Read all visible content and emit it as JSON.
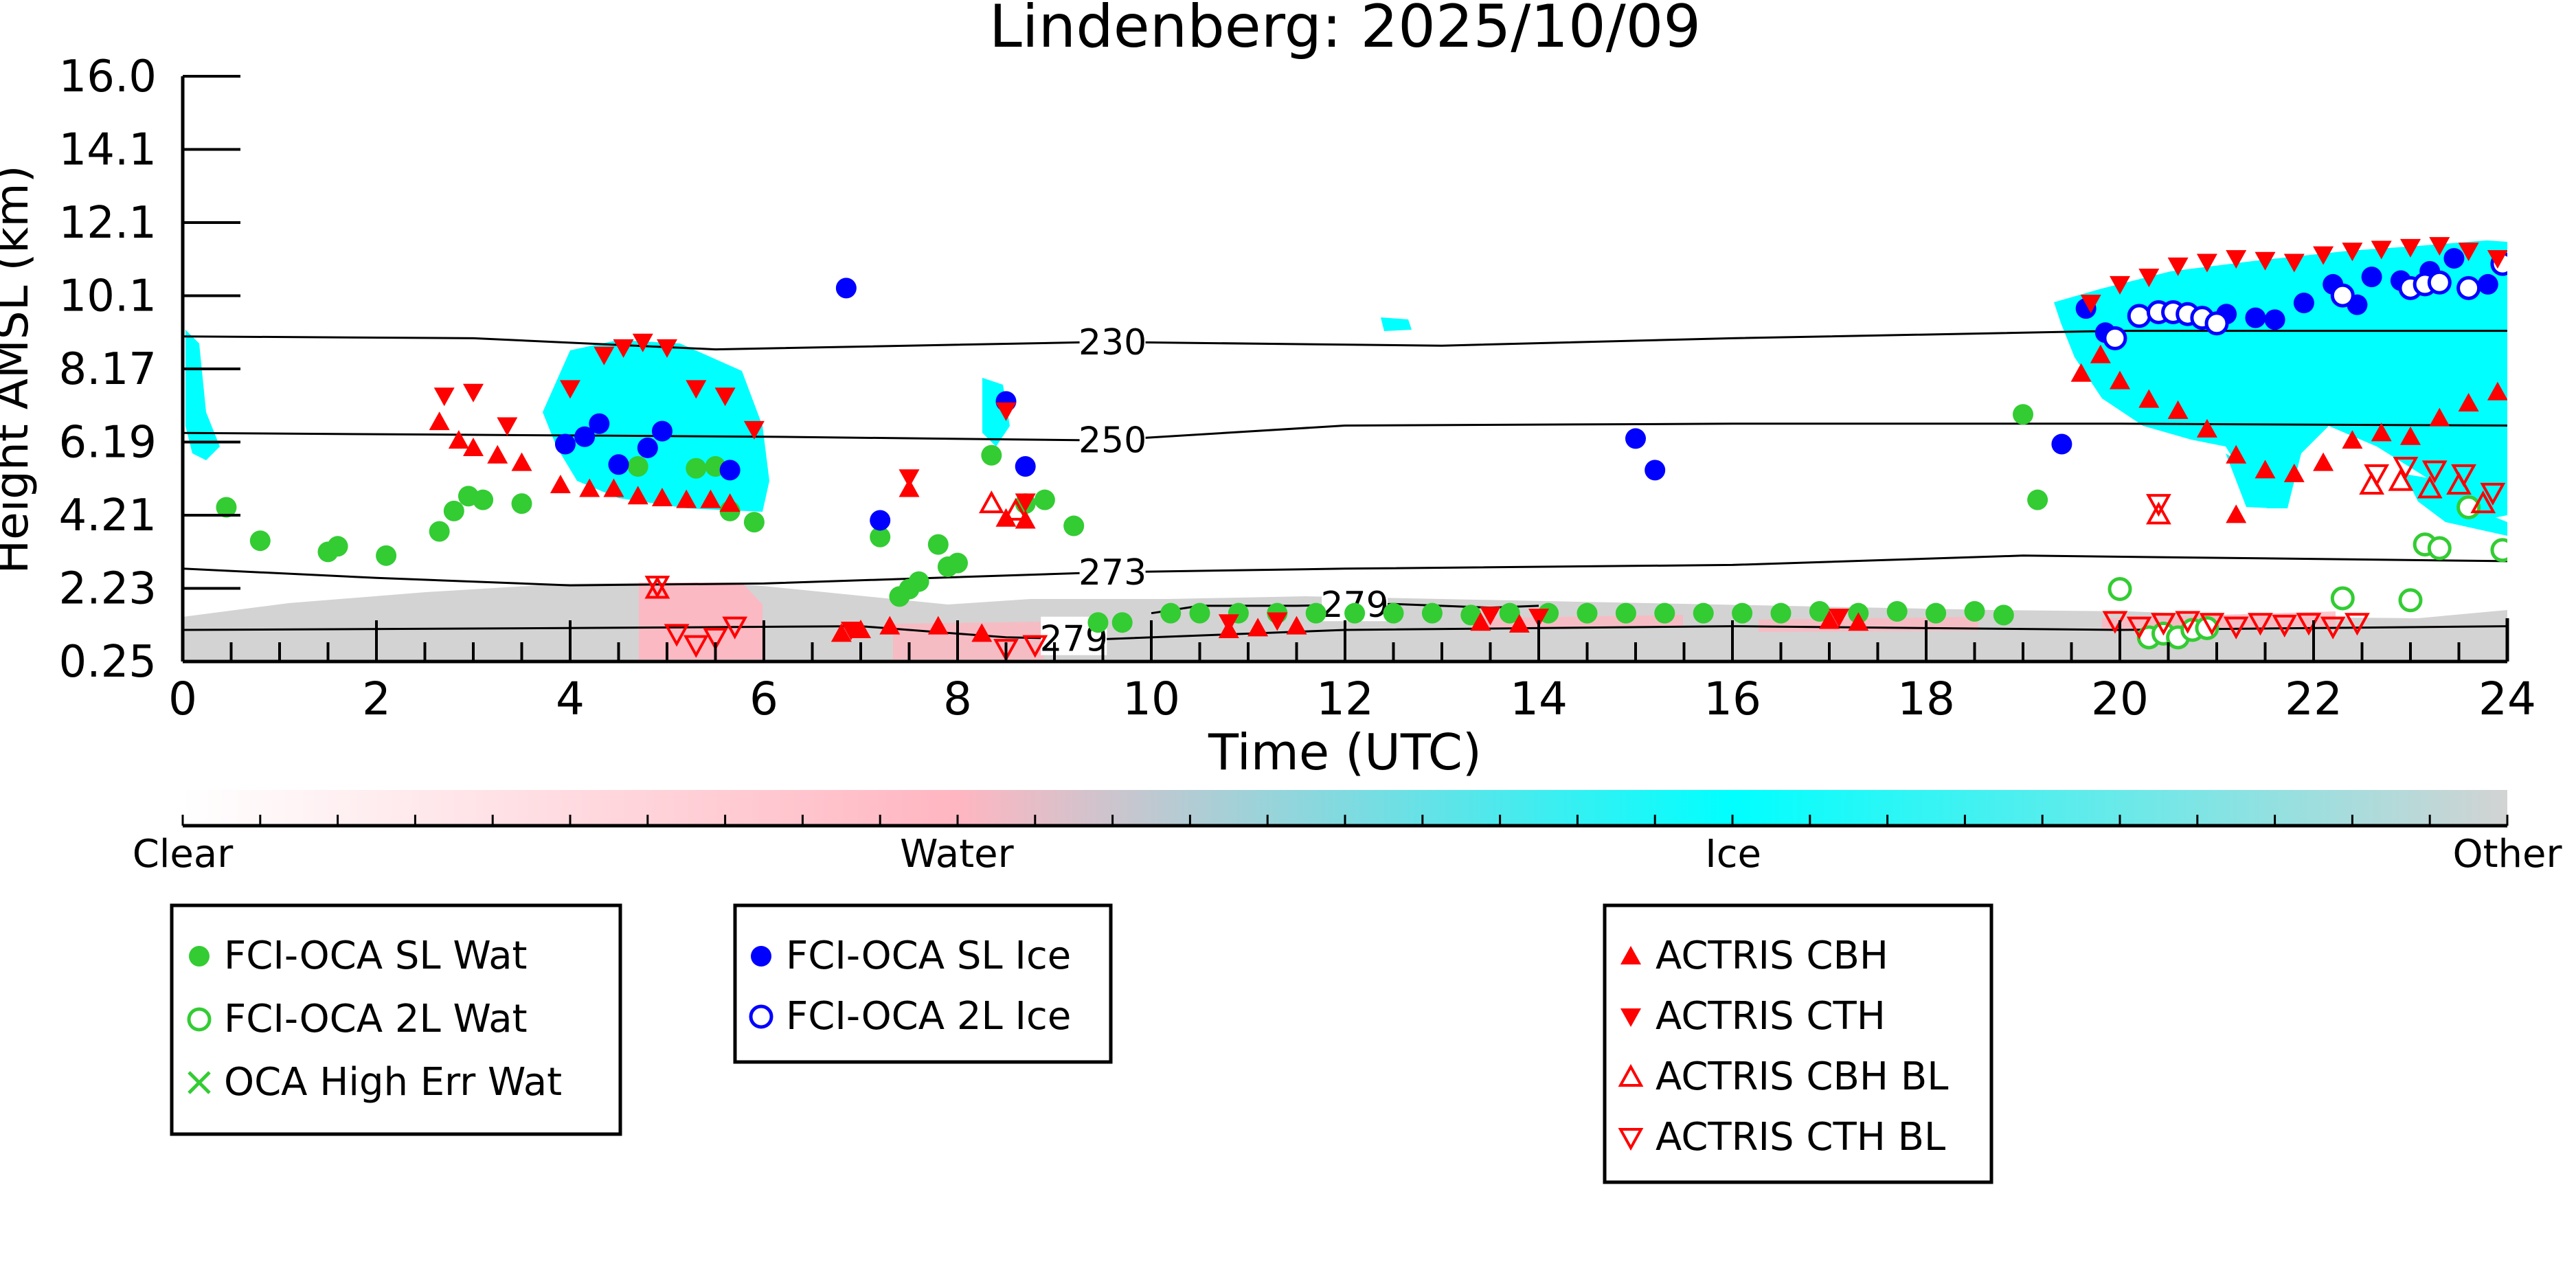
{
  "chart_data": {
    "type": "scatter",
    "title": "Lindenberg: 2025/10/09",
    "xlabel": "Time (UTC)",
    "ylabel": "Height AMSL (km)",
    "xlim": [
      0,
      24
    ],
    "ylim": [
      0.25,
      16.0
    ],
    "x_ticks": [
      0,
      2,
      4,
      6,
      8,
      10,
      12,
      14,
      16,
      18,
      20,
      22,
      24
    ],
    "y_ticks": [
      "0.25",
      "2.23",
      "4.21",
      "6.19",
      "8.17",
      "10.1",
      "12.1",
      "14.1",
      "16.0"
    ],
    "colorbar": {
      "labels": [
        {
          "text": "Clear",
          "pos": 0.0
        },
        {
          "text": "Water",
          "pos": 0.333
        },
        {
          "text": "Ice",
          "pos": 0.667
        },
        {
          "text": "Other",
          "pos": 1.0
        }
      ],
      "colors": [
        "#ffffff",
        "#ffb6c1",
        "#00ffff",
        "#d3d3d3"
      ]
    },
    "isotherms": [
      {
        "label": "230",
        "label_x": 9.6,
        "points": [
          [
            0,
            9.0
          ],
          [
            3,
            8.95
          ],
          [
            5.5,
            8.65
          ],
          [
            9.5,
            8.85
          ],
          [
            13,
            8.75
          ],
          [
            16,
            8.95
          ],
          [
            20,
            9.15
          ],
          [
            24,
            9.15
          ]
        ]
      },
      {
        "label": "250",
        "label_x": 9.6,
        "points": [
          [
            0,
            6.4
          ],
          [
            3,
            6.35
          ],
          [
            6,
            6.3
          ],
          [
            9.5,
            6.2
          ],
          [
            12,
            6.6
          ],
          [
            16,
            6.65
          ],
          [
            20,
            6.65
          ],
          [
            24,
            6.6
          ]
        ]
      },
      {
        "label": "273",
        "label_x": 9.6,
        "points": [
          [
            0,
            2.75
          ],
          [
            2,
            2.5
          ],
          [
            4,
            2.3
          ],
          [
            6,
            2.35
          ],
          [
            9.5,
            2.65
          ],
          [
            12,
            2.75
          ],
          [
            16,
            2.85
          ],
          [
            19,
            3.1
          ],
          [
            24,
            2.95
          ]
        ]
      },
      {
        "label": "279",
        "label_x": 12.1,
        "points": [
          [
            10,
            1.55
          ],
          [
            10.5,
            1.75
          ],
          [
            11.5,
            1.75
          ],
          [
            12.5,
            1.8
          ],
          [
            13.5,
            1.7
          ],
          [
            14,
            1.75
          ]
        ]
      },
      {
        "label": "279",
        "label_x": 9.2,
        "points": [
          [
            0,
            1.1
          ],
          [
            4,
            1.15
          ],
          [
            7,
            1.2
          ],
          [
            8.5,
            0.9
          ],
          [
            9.5,
            0.85
          ],
          [
            12,
            1.1
          ],
          [
            16,
            1.2
          ],
          [
            20,
            1.1
          ],
          [
            24,
            1.2
          ]
        ]
      }
    ],
    "series": [
      {
        "name": "FCI-OCA SL Wat",
        "marker": "filled-circle",
        "color": "#33cc33",
        "points": [
          [
            0.45,
            4.4
          ],
          [
            0.8,
            3.5
          ],
          [
            1.5,
            3.2
          ],
          [
            1.6,
            3.35
          ],
          [
            2.1,
            3.1
          ],
          [
            2.65,
            3.75
          ],
          [
            2.8,
            4.3
          ],
          [
            2.95,
            4.7
          ],
          [
            3.1,
            4.6
          ],
          [
            3.5,
            4.5
          ],
          [
            4.7,
            5.5
          ],
          [
            5.3,
            5.45
          ],
          [
            5.5,
            5.5
          ],
          [
            5.65,
            4.3
          ],
          [
            5.9,
            4.0
          ],
          [
            7.2,
            3.6
          ],
          [
            7.4,
            2.0
          ],
          [
            7.5,
            2.2
          ],
          [
            7.6,
            2.4
          ],
          [
            7.8,
            3.4
          ],
          [
            7.9,
            2.8
          ],
          [
            8.0,
            2.9
          ],
          [
            8.35,
            5.8
          ],
          [
            8.7,
            4.5
          ],
          [
            8.9,
            4.6
          ],
          [
            9.2,
            3.9
          ],
          [
            9.45,
            1.3
          ],
          [
            9.7,
            1.3
          ],
          [
            10.2,
            1.55
          ],
          [
            10.5,
            1.55
          ],
          [
            10.9,
            1.55
          ],
          [
            11.3,
            1.55
          ],
          [
            11.7,
            1.55
          ],
          [
            12.1,
            1.55
          ],
          [
            12.5,
            1.55
          ],
          [
            12.9,
            1.55
          ],
          [
            13.3,
            1.5
          ],
          [
            13.7,
            1.55
          ],
          [
            14.1,
            1.55
          ],
          [
            14.5,
            1.55
          ],
          [
            14.9,
            1.55
          ],
          [
            15.3,
            1.55
          ],
          [
            15.7,
            1.55
          ],
          [
            16.1,
            1.55
          ],
          [
            16.5,
            1.55
          ],
          [
            16.9,
            1.6
          ],
          [
            17.3,
            1.55
          ],
          [
            17.7,
            1.6
          ],
          [
            18.1,
            1.55
          ],
          [
            18.5,
            1.6
          ],
          [
            18.8,
            1.5
          ],
          [
            19.0,
            6.9
          ],
          [
            19.15,
            4.6
          ]
        ]
      },
      {
        "name": "FCI-OCA 2L Wat",
        "marker": "open-circle",
        "color": "#33cc33",
        "points": [
          [
            20.0,
            2.2
          ],
          [
            20.3,
            0.9
          ],
          [
            20.45,
            1.0
          ],
          [
            20.6,
            0.9
          ],
          [
            20.75,
            1.1
          ],
          [
            20.9,
            1.15
          ],
          [
            22.3,
            1.95
          ],
          [
            23.0,
            1.9
          ],
          [
            23.15,
            3.4
          ],
          [
            23.3,
            3.3
          ],
          [
            23.6,
            4.4
          ],
          [
            23.95,
            3.25
          ]
        ]
      },
      {
        "name": "OCA High Err Wat",
        "marker": "x",
        "color": "#33cc33",
        "points": []
      },
      {
        "name": "FCI-OCA SL Ice",
        "marker": "filled-circle",
        "color": "#0000ff",
        "points": [
          [
            3.95,
            6.1
          ],
          [
            4.15,
            6.3
          ],
          [
            4.3,
            6.65
          ],
          [
            4.5,
            5.55
          ],
          [
            4.8,
            6.0
          ],
          [
            4.95,
            6.45
          ],
          [
            5.65,
            5.4
          ],
          [
            6.85,
            10.3
          ],
          [
            7.2,
            4.05
          ],
          [
            8.5,
            7.25
          ],
          [
            8.7,
            5.5
          ],
          [
            15.0,
            6.25
          ],
          [
            15.2,
            5.4
          ],
          [
            19.4,
            6.1
          ],
          [
            19.65,
            9.75
          ],
          [
            19.85,
            9.1
          ],
          [
            21.1,
            9.6
          ],
          [
            21.4,
            9.5
          ],
          [
            21.6,
            9.45
          ],
          [
            21.9,
            9.9
          ],
          [
            22.2,
            10.4
          ],
          [
            22.45,
            9.85
          ],
          [
            22.6,
            10.6
          ],
          [
            22.9,
            10.5
          ],
          [
            23.2,
            10.75
          ],
          [
            23.45,
            11.1
          ],
          [
            23.8,
            10.4
          ]
        ]
      },
      {
        "name": "FCI-OCA 2L Ice",
        "marker": "open-circle",
        "color": "#0000ff",
        "points": [
          [
            19.95,
            8.95
          ],
          [
            20.2,
            9.55
          ],
          [
            20.4,
            9.65
          ],
          [
            20.55,
            9.65
          ],
          [
            20.7,
            9.6
          ],
          [
            20.85,
            9.5
          ],
          [
            21.0,
            9.35
          ],
          [
            22.3,
            10.1
          ],
          [
            23.0,
            10.3
          ],
          [
            23.15,
            10.4
          ],
          [
            23.3,
            10.45
          ],
          [
            23.6,
            10.3
          ],
          [
            23.95,
            10.95
          ]
        ]
      },
      {
        "name": "ACTRIS CBH",
        "marker": "filled-triangle-up",
        "color": "#ff0000",
        "points": [
          [
            2.65,
            6.7
          ],
          [
            2.85,
            6.2
          ],
          [
            3.0,
            6.0
          ],
          [
            3.25,
            5.8
          ],
          [
            3.5,
            5.6
          ],
          [
            3.9,
            5.0
          ],
          [
            4.2,
            4.9
          ],
          [
            4.45,
            4.9
          ],
          [
            4.7,
            4.7
          ],
          [
            4.95,
            4.65
          ],
          [
            5.2,
            4.6
          ],
          [
            5.45,
            4.6
          ],
          [
            5.65,
            4.5
          ],
          [
            6.8,
            1.0
          ],
          [
            7.0,
            1.1
          ],
          [
            7.3,
            1.2
          ],
          [
            7.5,
            4.9
          ],
          [
            7.8,
            1.2
          ],
          [
            8.25,
            1.0
          ],
          [
            8.5,
            4.1
          ],
          [
            8.7,
            4.05
          ],
          [
            10.8,
            1.1
          ],
          [
            11.1,
            1.15
          ],
          [
            11.5,
            1.2
          ],
          [
            13.4,
            1.3
          ],
          [
            13.8,
            1.25
          ],
          [
            17.0,
            1.35
          ],
          [
            17.3,
            1.3
          ],
          [
            19.6,
            8.0
          ],
          [
            19.8,
            8.5
          ],
          [
            20.0,
            7.8
          ],
          [
            20.3,
            7.3
          ],
          [
            20.6,
            7.0
          ],
          [
            20.9,
            6.5
          ],
          [
            21.2,
            5.8
          ],
          [
            21.5,
            5.4
          ],
          [
            21.8,
            5.3
          ],
          [
            22.1,
            5.6
          ],
          [
            22.4,
            6.2
          ],
          [
            22.7,
            6.4
          ],
          [
            23.0,
            6.3
          ],
          [
            23.3,
            6.8
          ],
          [
            23.6,
            7.2
          ],
          [
            23.9,
            7.5
          ],
          [
            21.2,
            4.2
          ]
        ]
      },
      {
        "name": "ACTRIS CTH",
        "marker": "filled-triangle-down",
        "color": "#ff0000",
        "points": [
          [
            2.7,
            7.4
          ],
          [
            3.0,
            7.5
          ],
          [
            3.35,
            6.6
          ],
          [
            4.0,
            7.6
          ],
          [
            4.35,
            8.5
          ],
          [
            4.55,
            8.7
          ],
          [
            4.75,
            8.85
          ],
          [
            5.0,
            8.7
          ],
          [
            5.3,
            7.6
          ],
          [
            5.6,
            7.4
          ],
          [
            5.9,
            6.5
          ],
          [
            6.9,
            1.1
          ],
          [
            7.5,
            5.2
          ],
          [
            8.5,
            7.0
          ],
          [
            8.7,
            4.55
          ],
          [
            10.8,
            1.3
          ],
          [
            11.3,
            1.35
          ],
          [
            13.5,
            1.5
          ],
          [
            14.0,
            1.45
          ],
          [
            17.1,
            1.45
          ],
          [
            19.7,
            9.9
          ],
          [
            20.0,
            10.4
          ],
          [
            20.3,
            10.6
          ],
          [
            20.6,
            10.9
          ],
          [
            20.9,
            11.0
          ],
          [
            21.2,
            11.1
          ],
          [
            21.5,
            11.05
          ],
          [
            21.8,
            11.0
          ],
          [
            22.1,
            11.2
          ],
          [
            22.4,
            11.3
          ],
          [
            22.7,
            11.35
          ],
          [
            23.0,
            11.4
          ],
          [
            23.3,
            11.45
          ],
          [
            23.6,
            11.3
          ],
          [
            23.9,
            11.1
          ]
        ]
      },
      {
        "name": "ACTRIS CBH BL",
        "marker": "open-triangle-up",
        "color": "#ff0000",
        "points": [
          [
            4.9,
            2.2
          ],
          [
            8.35,
            4.5
          ],
          [
            8.6,
            4.3
          ],
          [
            20.4,
            4.2
          ],
          [
            22.6,
            5.0
          ],
          [
            22.9,
            5.1
          ],
          [
            23.2,
            4.9
          ],
          [
            23.5,
            5.0
          ],
          [
            23.75,
            4.5
          ]
        ]
      },
      {
        "name": "ACTRIS CTH BL",
        "marker": "open-triangle-down",
        "color": "#ff0000",
        "points": [
          [
            4.9,
            2.3
          ],
          [
            5.1,
            1.0
          ],
          [
            5.3,
            0.7
          ],
          [
            5.5,
            0.9
          ],
          [
            5.7,
            1.2
          ],
          [
            8.5,
            0.6
          ],
          [
            8.8,
            0.7
          ],
          [
            19.95,
            1.35
          ],
          [
            20.2,
            1.2
          ],
          [
            20.45,
            1.3
          ],
          [
            20.7,
            1.35
          ],
          [
            20.95,
            1.3
          ],
          [
            21.2,
            1.2
          ],
          [
            21.45,
            1.3
          ],
          [
            21.7,
            1.25
          ],
          [
            21.95,
            1.3
          ],
          [
            22.2,
            1.2
          ],
          [
            22.45,
            1.3
          ],
          [
            20.4,
            4.5
          ],
          [
            22.65,
            5.3
          ],
          [
            22.95,
            5.5
          ],
          [
            23.25,
            5.4
          ],
          [
            23.55,
            5.3
          ],
          [
            23.85,
            4.8
          ]
        ]
      }
    ],
    "legend_placement": "bottom"
  }
}
